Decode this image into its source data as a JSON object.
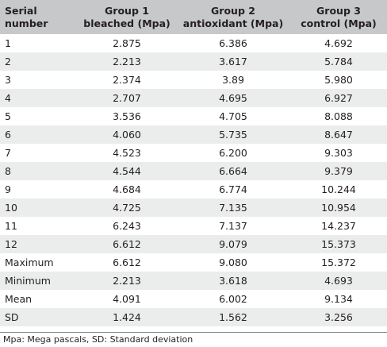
{
  "table": {
    "headers": [
      [
        "Serial",
        "number"
      ],
      [
        "Group 1",
        "bleached (Mpa)"
      ],
      [
        "Group 2",
        "antioxidant (Mpa)"
      ],
      [
        "Group 3",
        "control (Mpa)"
      ]
    ],
    "rows": [
      [
        "1",
        "2.875",
        "6.386",
        "4.692"
      ],
      [
        "2",
        "2.213",
        "3.617",
        "5.784"
      ],
      [
        "3",
        "2.374",
        "3.89",
        "5.980"
      ],
      [
        "4",
        "2.707",
        "4.695",
        "6.927"
      ],
      [
        "5",
        "3.536",
        "4.705",
        "8.088"
      ],
      [
        "6",
        "4.060",
        "5.735",
        "8.647"
      ],
      [
        "7",
        "4.523",
        "6.200",
        "9.303"
      ],
      [
        "8",
        "4.544",
        "6.664",
        "9.379"
      ],
      [
        "9",
        "4.684",
        "6.774",
        "10.244"
      ],
      [
        "10",
        "4.725",
        "7.135",
        "10.954"
      ],
      [
        "11",
        "6.243",
        "7.137",
        "14.237"
      ],
      [
        "12",
        "6.612",
        "9.079",
        "15.373"
      ],
      [
        "Maximum",
        "6.612",
        "9.080",
        "15.372"
      ],
      [
        "Minimum",
        "2.213",
        "3.618",
        "4.693"
      ],
      [
        "Mean",
        "4.091",
        "6.002",
        "9.134"
      ],
      [
        "SD",
        "1.424",
        "1.562",
        "3.256"
      ]
    ]
  },
  "footnote": "Mpa: Mega pascals, SD: Standard deviation",
  "colors": {
    "header_bg": "#c7c8ca",
    "zebra_bg": "#ebecec",
    "text": "#231f20"
  }
}
